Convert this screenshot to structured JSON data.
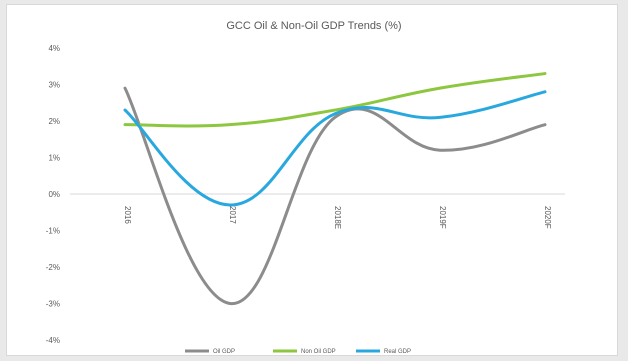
{
  "chart_data": {
    "type": "line",
    "title": "GCC Oil & Non-Oil GDP Trends (%)",
    "xlabel": "",
    "ylabel": "",
    "categories": [
      "2016",
      "2017",
      "2018E",
      "2019F",
      "2020F"
    ],
    "y_tick_labels": [
      "4%",
      "3%",
      "2%",
      "1%",
      "0%",
      "-1%",
      "-2%",
      "-3%",
      "-4%"
    ],
    "ylim": [
      -4,
      4
    ],
    "grid": false,
    "legend_position": "bottom",
    "series": [
      {
        "name": "Oil GDP",
        "color": "#8c8c8c",
        "values": [
          2.9,
          -3.0,
          2.1,
          1.2,
          1.9
        ]
      },
      {
        "name": "Non Oil GDP",
        "color": "#8dc63f",
        "values": [
          1.9,
          1.9,
          2.3,
          2.9,
          3.3
        ]
      },
      {
        "name": "Real GDP",
        "color": "#29a8e0",
        "values": [
          2.3,
          -0.3,
          2.2,
          2.1,
          2.8
        ]
      }
    ]
  }
}
